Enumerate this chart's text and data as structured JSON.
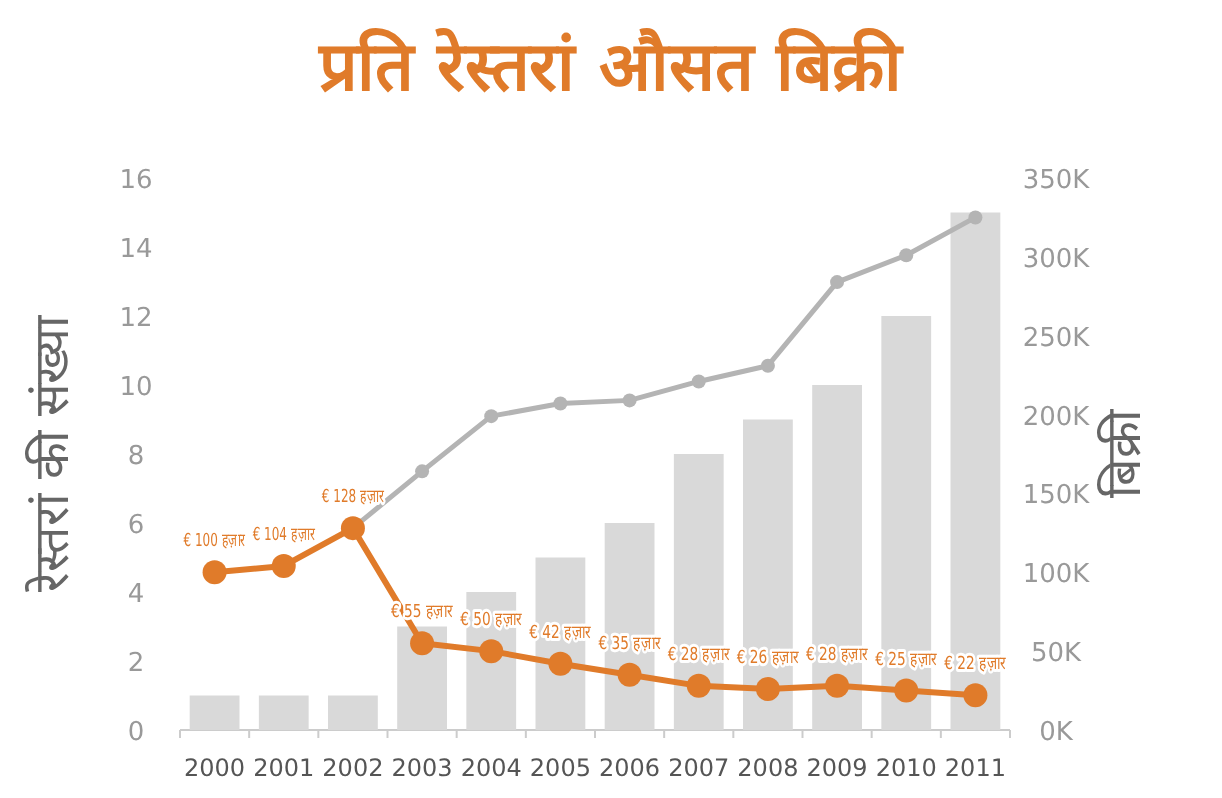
{
  "chart_data": {
    "type": "bar",
    "title": "प्रति रेस्तरां औसत बिक्री",
    "ylabel": "रेस्तरां की संख्या",
    "y2label": "बिक्री",
    "categories": [
      "2000",
      "2001",
      "2002",
      "2003",
      "2004",
      "2005",
      "2006",
      "2007",
      "2008",
      "2009",
      "2010",
      "2011"
    ],
    "ylim": [
      0,
      16
    ],
    "yticks": [
      0,
      2,
      4,
      6,
      8,
      10,
      12,
      14,
      16
    ],
    "y2lim": [
      0,
      350
    ],
    "y2ticks": [
      {
        "value": 0,
        "label": "0K"
      },
      {
        "value": 50,
        "label": "50K"
      },
      {
        "value": 100,
        "label": "100K"
      },
      {
        "value": 150,
        "label": "150K"
      },
      {
        "value": 200,
        "label": "200K"
      },
      {
        "value": 250,
        "label": "250K"
      },
      {
        "value": 300,
        "label": "300K"
      },
      {
        "value": 350,
        "label": "350K"
      }
    ],
    "grid": false,
    "marker": "circle",
    "series": [
      {
        "color": "#d9d9d9",
        "values": [
          1,
          1,
          1,
          3,
          4,
          5,
          6,
          8,
          9,
          10,
          12,
          15
        ]
      },
      {
        "type": "line",
        "axis": "y2",
        "color": "#b4b4b4",
        "values": [
          null,
          null,
          128,
          164,
          199,
          207,
          209,
          221,
          231,
          284,
          301,
          325
        ]
      },
      {
        "type": "line",
        "axis": "y2",
        "color": "#e07b2a",
        "values": [
          100,
          104,
          128,
          55,
          50,
          42,
          35,
          28,
          26,
          28,
          25,
          22
        ],
        "value_labels": [
          "€ 100 हज़ार",
          "€ 104 हज़ार",
          "€ 128 हज़ार",
          "€ 55 हज़ार",
          "€ 50 हज़ार",
          "€ 42 हज़ार",
          "€ 35 हज़ार",
          "€ 28 हज़ार",
          "€ 26 हज़ार",
          "€ 28 हज़ार",
          "€ 25 हज़ार",
          "€ 22 हज़ार"
        ]
      }
    ]
  }
}
